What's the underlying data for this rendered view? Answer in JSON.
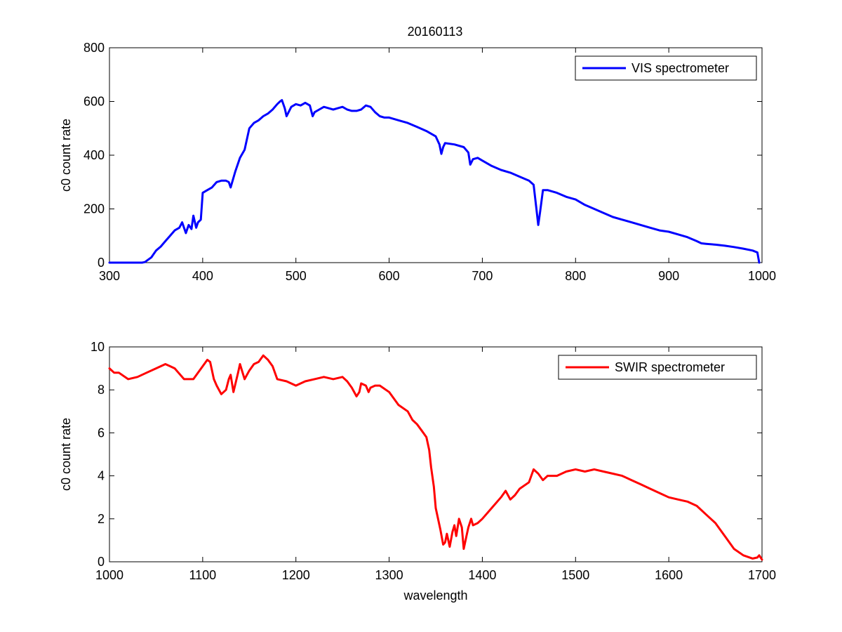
{
  "figure_title": "20160113",
  "chart_data": [
    {
      "type": "line",
      "title": "20160113",
      "xlabel": "",
      "ylabel": "c0 count rate",
      "xlim": [
        300,
        1000
      ],
      "ylim": [
        0,
        800
      ],
      "xticks": [
        300,
        400,
        500,
        600,
        700,
        800,
        900,
        1000
      ],
      "yticks": [
        0,
        200,
        400,
        600,
        800
      ],
      "legend": "top-right",
      "grid": false,
      "series": [
        {
          "name": "VIS spectrometer",
          "color": "#0000ff",
          "x": [
            300,
            310,
            320,
            330,
            335,
            338,
            345,
            350,
            355,
            360,
            365,
            370,
            375,
            378,
            382,
            385,
            388,
            390,
            393,
            395,
            398,
            400,
            405,
            410,
            415,
            420,
            425,
            428,
            430,
            435,
            440,
            445,
            450,
            455,
            460,
            465,
            470,
            475,
            480,
            483,
            485,
            488,
            490,
            495,
            500,
            505,
            510,
            515,
            518,
            520,
            525,
            530,
            535,
            540,
            545,
            550,
            555,
            560,
            565,
            570,
            575,
            580,
            585,
            590,
            595,
            600,
            610,
            620,
            630,
            640,
            650,
            654,
            656,
            658,
            660,
            670,
            680,
            685,
            687,
            690,
            695,
            700,
            710,
            720,
            730,
            740,
            750,
            755,
            758,
            760,
            762,
            765,
            770,
            780,
            790,
            800,
            810,
            820,
            830,
            840,
            850,
            860,
            870,
            880,
            890,
            900,
            910,
            920,
            930,
            935,
            940,
            950,
            960,
            970,
            980,
            990,
            995,
            997
          ],
          "y": [
            0,
            0,
            0,
            0,
            0,
            2,
            20,
            45,
            60,
            80,
            100,
            120,
            130,
            150,
            110,
            140,
            125,
            175,
            130,
            150,
            160,
            260,
            270,
            280,
            300,
            305,
            305,
            300,
            280,
            340,
            390,
            420,
            500,
            520,
            530,
            545,
            555,
            570,
            590,
            600,
            605,
            575,
            545,
            580,
            590,
            585,
            595,
            585,
            545,
            560,
            570,
            580,
            575,
            570,
            575,
            580,
            570,
            565,
            565,
            570,
            585,
            580,
            560,
            545,
            540,
            540,
            530,
            520,
            505,
            490,
            470,
            440,
            405,
            430,
            445,
            440,
            430,
            410,
            365,
            385,
            390,
            380,
            360,
            345,
            335,
            320,
            305,
            290,
            200,
            140,
            190,
            270,
            270,
            260,
            245,
            235,
            215,
            200,
            185,
            170,
            160,
            150,
            140,
            130,
            120,
            115,
            105,
            95,
            80,
            72,
            70,
            67,
            63,
            58,
            52,
            45,
            38,
            0
          ]
        }
      ]
    },
    {
      "type": "line",
      "title": "",
      "xlabel": "wavelength",
      "ylabel": "c0 count rate",
      "xlim": [
        1000,
        1700
      ],
      "ylim": [
        0,
        10
      ],
      "xticks": [
        1000,
        1100,
        1200,
        1300,
        1400,
        1500,
        1600,
        1700
      ],
      "yticks": [
        0,
        2,
        4,
        6,
        8,
        10
      ],
      "legend": "top-right",
      "grid": false,
      "series": [
        {
          "name": "SWIR spectrometer",
          "color": "#ff0000",
          "x": [
            1000,
            1005,
            1010,
            1020,
            1030,
            1040,
            1050,
            1060,
            1065,
            1070,
            1080,
            1090,
            1100,
            1105,
            1108,
            1112,
            1115,
            1120,
            1125,
            1128,
            1130,
            1133,
            1138,
            1140,
            1145,
            1150,
            1155,
            1160,
            1165,
            1170,
            1175,
            1180,
            1190,
            1200,
            1210,
            1220,
            1230,
            1240,
            1250,
            1255,
            1260,
            1265,
            1268,
            1270,
            1275,
            1278,
            1280,
            1285,
            1290,
            1300,
            1310,
            1320,
            1325,
            1330,
            1335,
            1340,
            1343,
            1345,
            1348,
            1350,
            1355,
            1358,
            1360,
            1362,
            1365,
            1368,
            1370,
            1372,
            1375,
            1378,
            1380,
            1383,
            1385,
            1388,
            1390,
            1395,
            1400,
            1410,
            1420,
            1425,
            1430,
            1435,
            1440,
            1450,
            1455,
            1460,
            1465,
            1470,
            1480,
            1490,
            1500,
            1510,
            1520,
            1530,
            1540,
            1550,
            1560,
            1570,
            1580,
            1590,
            1600,
            1610,
            1620,
            1630,
            1640,
            1650,
            1660,
            1670,
            1680,
            1690,
            1695,
            1697,
            1700
          ],
          "y": [
            9,
            8.8,
            8.8,
            8.5,
            8.6,
            8.8,
            9,
            9.2,
            9.1,
            9,
            8.5,
            8.5,
            9.1,
            9.4,
            9.3,
            8.5,
            8.2,
            7.8,
            8,
            8.5,
            8.7,
            7.9,
            8.8,
            9.2,
            8.5,
            8.9,
            9.2,
            9.3,
            9.6,
            9.4,
            9.1,
            8.5,
            8.4,
            8.2,
            8.4,
            8.5,
            8.6,
            8.5,
            8.6,
            8.4,
            8.1,
            7.7,
            7.9,
            8.3,
            8.2,
            7.9,
            8.1,
            8.2,
            8.2,
            7.9,
            7.3,
            7,
            6.6,
            6.4,
            6.1,
            5.8,
            5.2,
            4.4,
            3.5,
            2.5,
            1.5,
            0.8,
            0.9,
            1.3,
            0.7,
            1.4,
            1.7,
            1.2,
            2,
            1.6,
            0.6,
            1.2,
            1.6,
            2,
            1.7,
            1.8,
            2,
            2.5,
            3,
            3.3,
            2.9,
            3.1,
            3.4,
            3.7,
            4.3,
            4.1,
            3.8,
            4,
            4,
            4.2,
            4.3,
            4.2,
            4.3,
            4.2,
            4.1,
            4,
            3.8,
            3.6,
            3.4,
            3.2,
            3,
            2.9,
            2.8,
            2.6,
            2.2,
            1.8,
            1.2,
            0.6,
            0.3,
            0.15,
            0.2,
            0.3,
            0.1
          ]
        }
      ]
    }
  ]
}
